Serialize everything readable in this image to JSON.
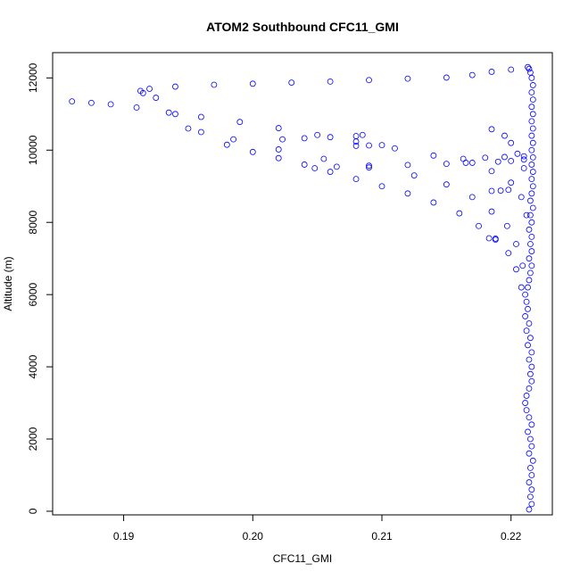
{
  "chart_data": {
    "type": "scatter",
    "title": "ATOM2 Southbound CFC11_GMI",
    "xlabel": "CFC11_GMI",
    "ylabel": "Altitude (m)",
    "xlim": [
      0.1845,
      0.2232
    ],
    "ylim": [
      -100,
      12700
    ],
    "xticks": [
      0.19,
      0.2,
      0.21,
      0.22
    ],
    "xtick_labels": [
      "0.19",
      "0.20",
      "0.21",
      "0.22"
    ],
    "yticks": [
      0,
      2000,
      4000,
      6000,
      8000,
      10000,
      12000
    ],
    "ytick_labels": [
      "0",
      "2000",
      "4000",
      "6000",
      "8000",
      "10000",
      "12000"
    ],
    "grid": false,
    "marker": "open-circle",
    "color": "#0000ff",
    "series": [
      {
        "points": [
          [
            0.2214,
            50
          ],
          [
            0.2216,
            200
          ],
          [
            0.2215,
            400
          ],
          [
            0.2216,
            600
          ],
          [
            0.2214,
            800
          ],
          [
            0.2216,
            1000
          ],
          [
            0.2215,
            1200
          ],
          [
            0.2217,
            1400
          ],
          [
            0.2214,
            1600
          ],
          [
            0.2216,
            1800
          ],
          [
            0.2215,
            2000
          ],
          [
            0.2213,
            2200
          ],
          [
            0.2216,
            2400
          ],
          [
            0.2214,
            2600
          ],
          [
            0.2212,
            2800
          ],
          [
            0.2211,
            3000
          ],
          [
            0.2212,
            3200
          ],
          [
            0.2214,
            3400
          ],
          [
            0.2216,
            3600
          ],
          [
            0.2215,
            3800
          ],
          [
            0.2216,
            4000
          ],
          [
            0.2214,
            4200
          ],
          [
            0.2216,
            4400
          ],
          [
            0.2213,
            4600
          ],
          [
            0.2215,
            4800
          ],
          [
            0.2212,
            5000
          ],
          [
            0.2214,
            5200
          ],
          [
            0.2211,
            5400
          ],
          [
            0.2213,
            5600
          ],
          [
            0.2212,
            5800
          ],
          [
            0.2211,
            6000
          ],
          [
            0.2213,
            6200
          ],
          [
            0.2214,
            6400
          ],
          [
            0.2215,
            6600
          ],
          [
            0.2216,
            6800
          ],
          [
            0.2214,
            7000
          ],
          [
            0.2216,
            7200
          ],
          [
            0.2215,
            7400
          ],
          [
            0.2216,
            7600
          ],
          [
            0.2214,
            7800
          ],
          [
            0.2216,
            8000
          ],
          [
            0.2215,
            8200
          ],
          [
            0.2217,
            8400
          ],
          [
            0.2215,
            8600
          ],
          [
            0.2216,
            8800
          ],
          [
            0.2217,
            9000
          ],
          [
            0.2216,
            9200
          ],
          [
            0.2217,
            9400
          ],
          [
            0.2216,
            9600
          ],
          [
            0.2217,
            9800
          ],
          [
            0.2216,
            10000
          ],
          [
            0.2217,
            10200
          ],
          [
            0.2216,
            10400
          ],
          [
            0.2217,
            10600
          ],
          [
            0.2216,
            10800
          ],
          [
            0.2217,
            11000
          ],
          [
            0.2216,
            11200
          ],
          [
            0.2217,
            11400
          ],
          [
            0.2216,
            11600
          ],
          [
            0.2217,
            11800
          ],
          [
            0.2216,
            12000
          ],
          [
            0.2215,
            12150
          ],
          [
            0.2214,
            12250
          ],
          [
            0.2213,
            12300
          ],
          [
            0.22,
            12230
          ],
          [
            0.2185,
            12170
          ],
          [
            0.217,
            12080
          ],
          [
            0.215,
            12010
          ],
          [
            0.212,
            11980
          ],
          [
            0.209,
            11940
          ],
          [
            0.206,
            11900
          ],
          [
            0.203,
            11870
          ],
          [
            0.2,
            11840
          ],
          [
            0.197,
            11810
          ],
          [
            0.194,
            11760
          ],
          [
            0.192,
            11700
          ],
          [
            0.1913,
            11640
          ],
          [
            0.1915,
            11580
          ],
          [
            0.1925,
            11450
          ],
          [
            0.194,
            11000
          ],
          [
            0.196,
            10500
          ],
          [
            0.198,
            10150
          ],
          [
            0.2,
            9950
          ],
          [
            0.202,
            9780
          ],
          [
            0.204,
            9600
          ],
          [
            0.206,
            9400
          ],
          [
            0.208,
            9200
          ],
          [
            0.21,
            9000
          ],
          [
            0.212,
            8800
          ],
          [
            0.214,
            8550
          ],
          [
            0.216,
            8250
          ],
          [
            0.2175,
            7900
          ],
          [
            0.2188,
            7550
          ],
          [
            0.2198,
            7150
          ],
          [
            0.2204,
            6700
          ],
          [
            0.2208,
            6200
          ],
          [
            0.186,
            11350
          ],
          [
            0.1875,
            11310
          ],
          [
            0.189,
            11270
          ],
          [
            0.191,
            11180
          ],
          [
            0.1935,
            11040
          ],
          [
            0.196,
            10920
          ],
          [
            0.199,
            10780
          ],
          [
            0.202,
            10610
          ],
          [
            0.205,
            10420
          ],
          [
            0.208,
            10240
          ],
          [
            0.211,
            10050
          ],
          [
            0.214,
            9850
          ],
          [
            0.2165,
            9650
          ],
          [
            0.2185,
            9420
          ],
          [
            0.22,
            9100
          ],
          [
            0.2208,
            8700
          ],
          [
            0.2212,
            8200
          ],
          [
            0.195,
            10600
          ],
          [
            0.1985,
            10300
          ],
          [
            0.202,
            10020
          ],
          [
            0.2055,
            9760
          ],
          [
            0.209,
            9520
          ],
          [
            0.2125,
            9300
          ],
          [
            0.215,
            9050
          ],
          [
            0.217,
            8700
          ],
          [
            0.2185,
            8300
          ],
          [
            0.2197,
            7900
          ],
          [
            0.2204,
            7400
          ],
          [
            0.2209,
            6800
          ],
          [
            0.2023,
            10300
          ],
          [
            0.204,
            10330
          ],
          [
            0.206,
            10360
          ],
          [
            0.208,
            10390
          ],
          [
            0.2085,
            10420
          ],
          [
            0.208,
            10120
          ],
          [
            0.209,
            10130
          ],
          [
            0.21,
            10140
          ],
          [
            0.2048,
            9500
          ],
          [
            0.2065,
            9540
          ],
          [
            0.209,
            9570
          ],
          [
            0.212,
            9590
          ],
          [
            0.215,
            9620
          ],
          [
            0.217,
            9650
          ],
          [
            0.219,
            9680
          ],
          [
            0.22,
            9700
          ],
          [
            0.221,
            9740
          ],
          [
            0.2163,
            9760
          ],
          [
            0.218,
            9790
          ],
          [
            0.2195,
            9810
          ],
          [
            0.221,
            9830
          ],
          [
            0.2185,
            10580
          ],
          [
            0.2195,
            10400
          ],
          [
            0.22,
            10200
          ],
          [
            0.2205,
            9900
          ],
          [
            0.221,
            9500
          ],
          [
            0.2185,
            8870
          ],
          [
            0.2192,
            8880
          ],
          [
            0.2198,
            8900
          ],
          [
            0.2183,
            7560
          ],
          [
            0.2188,
            7520
          ]
        ]
      }
    ]
  }
}
